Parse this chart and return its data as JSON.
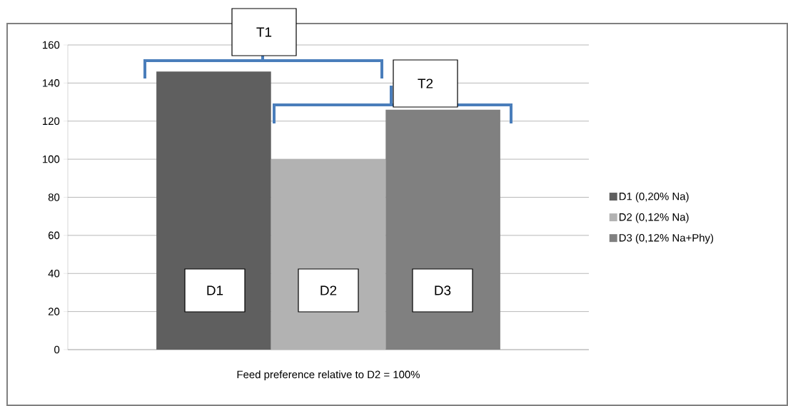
{
  "chart_data": {
    "type": "bar",
    "xlabel": "Feed preference relative to D2 = 100%",
    "categories": [
      null
    ],
    "series": [
      {
        "name": "D1 (0,20% Na)",
        "color": "#5f5f5f",
        "values": [
          146
        ]
      },
      {
        "name": "D2 (0,12% Na)",
        "color": "#b2b2b2",
        "values": [
          100
        ]
      },
      {
        "name": "D3 (0,12% Na+Phy)",
        "color": "#808080",
        "values": [
          126
        ]
      }
    ],
    "ylim": [
      0,
      160
    ],
    "yticks": [
      0,
      20,
      40,
      60,
      80,
      100,
      120,
      140,
      160
    ],
    "grid": "y",
    "legend": "right",
    "annotations": [
      "T1",
      "T2",
      "D1",
      "D2",
      "D3"
    ]
  }
}
